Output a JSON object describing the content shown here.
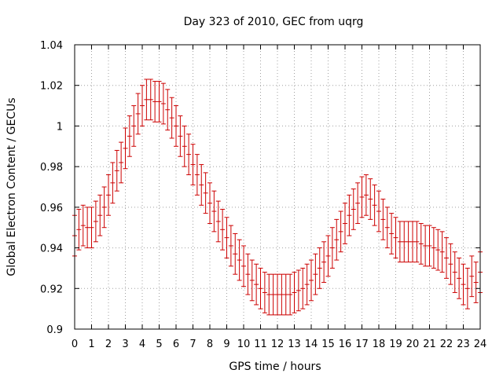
{
  "chart_data": {
    "type": "line",
    "title": "Day 323 of 2010, GEC from uqrg",
    "xlabel": "GPS time / hours",
    "ylabel": "Global Electron Content / GECUs",
    "xlim": [
      0,
      24
    ],
    "ylim": [
      0.9,
      1.04
    ],
    "grid": true,
    "x_ticks": [
      "0",
      "1",
      "2",
      "3",
      "4",
      "5",
      "6",
      "7",
      "8",
      "9",
      "10",
      "11",
      "12",
      "13",
      "14",
      "15",
      "16",
      "17",
      "18",
      "19",
      "20",
      "21",
      "22",
      "23",
      "24"
    ],
    "y_ticks": [
      "0.9",
      "0.92",
      "0.94",
      "0.96",
      "0.98",
      "1",
      "1.02",
      "1.04"
    ],
    "series_color": "#cc0000",
    "error_bar": 0.01,
    "x": [
      0,
      0.25,
      0.5,
      0.75,
      1,
      1.25,
      1.5,
      1.75,
      2,
      2.25,
      2.5,
      2.75,
      3,
      3.25,
      3.5,
      3.75,
      4,
      4.25,
      4.5,
      4.75,
      5,
      5.25,
      5.5,
      5.75,
      6,
      6.25,
      6.5,
      6.75,
      7,
      7.25,
      7.5,
      7.75,
      8,
      8.25,
      8.5,
      8.75,
      9,
      9.25,
      9.5,
      9.75,
      10,
      10.25,
      10.5,
      10.75,
      11,
      11.25,
      11.5,
      11.75,
      12,
      12.25,
      12.5,
      12.75,
      13,
      13.25,
      13.5,
      13.75,
      14,
      14.25,
      14.5,
      14.75,
      15,
      15.25,
      15.5,
      15.75,
      16,
      16.25,
      16.5,
      16.75,
      17,
      17.25,
      17.5,
      17.75,
      18,
      18.25,
      18.5,
      18.75,
      19,
      19.25,
      19.5,
      19.75,
      20,
      20.25,
      20.5,
      20.75,
      21,
      21.25,
      21.5,
      21.75,
      22,
      22.25,
      22.5,
      22.75,
      23,
      23.25,
      23.5,
      23.75,
      24
    ],
    "y": [
      0.946,
      0.949,
      0.951,
      0.95,
      0.95,
      0.953,
      0.956,
      0.96,
      0.966,
      0.972,
      0.978,
      0.982,
      0.989,
      0.995,
      1.0,
      1.006,
      1.01,
      1.013,
      1.013,
      1.012,
      1.012,
      1.011,
      1.008,
      1.004,
      1.0,
      0.995,
      0.99,
      0.986,
      0.981,
      0.976,
      0.971,
      0.967,
      0.962,
      0.958,
      0.953,
      0.949,
      0.945,
      0.941,
      0.937,
      0.934,
      0.931,
      0.927,
      0.924,
      0.922,
      0.92,
      0.918,
      0.917,
      0.917,
      0.917,
      0.917,
      0.917,
      0.917,
      0.918,
      0.919,
      0.92,
      0.922,
      0.924,
      0.927,
      0.93,
      0.933,
      0.936,
      0.94,
      0.944,
      0.948,
      0.952,
      0.956,
      0.959,
      0.962,
      0.965,
      0.966,
      0.964,
      0.961,
      0.958,
      0.954,
      0.95,
      0.947,
      0.945,
      0.943,
      0.943,
      0.943,
      0.943,
      0.943,
      0.942,
      0.941,
      0.941,
      0.94,
      0.939,
      0.938,
      0.935,
      0.932,
      0.928,
      0.925,
      0.922,
      0.92,
      0.926,
      0.923,
      0.928
    ]
  }
}
